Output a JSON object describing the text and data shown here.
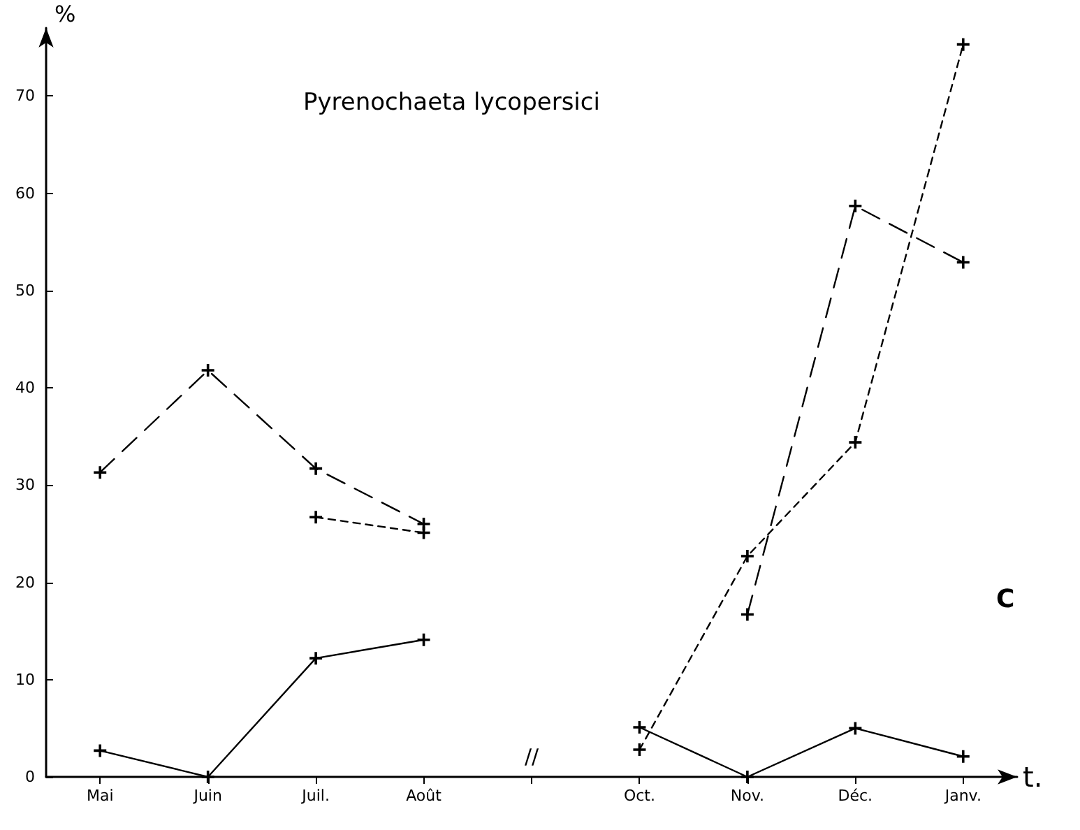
{
  "chart_data": {
    "type": "line",
    "title": "Pyrenochaeta lycopersici",
    "xlabel": "t.",
    "ylabel": "%",
    "categories": [
      "Mai",
      "Juin",
      "Juil.",
      "Août",
      null,
      "Oct.",
      "Nov.",
      "Déc.",
      "Janv."
    ],
    "series": [
      {
        "color": "#000000",
        "line_style": "solid",
        "values": [
          2.7,
          0,
          12.2,
          14.1,
          null,
          5.1,
          0,
          5.0,
          2.1
        ]
      },
      {
        "color": "#000000",
        "line_style": "dashed",
        "values": [
          31.3,
          41.8,
          31.7,
          26.0,
          null,
          null,
          16.7,
          58.7,
          52.9
        ]
      },
      {
        "color": "#000000",
        "line_style": "dotted",
        "values": [
          null,
          null,
          26.7,
          25.1,
          null,
          2.8,
          22.7,
          34.4,
          75.3
        ]
      }
    ],
    "ylim": [
      0,
      77
    ],
    "yticks": [
      0,
      10,
      20,
      30,
      40,
      50,
      60,
      70
    ],
    "grid": false,
    "marker": "cross",
    "annotations": [
      "C",
      "//"
    ]
  }
}
